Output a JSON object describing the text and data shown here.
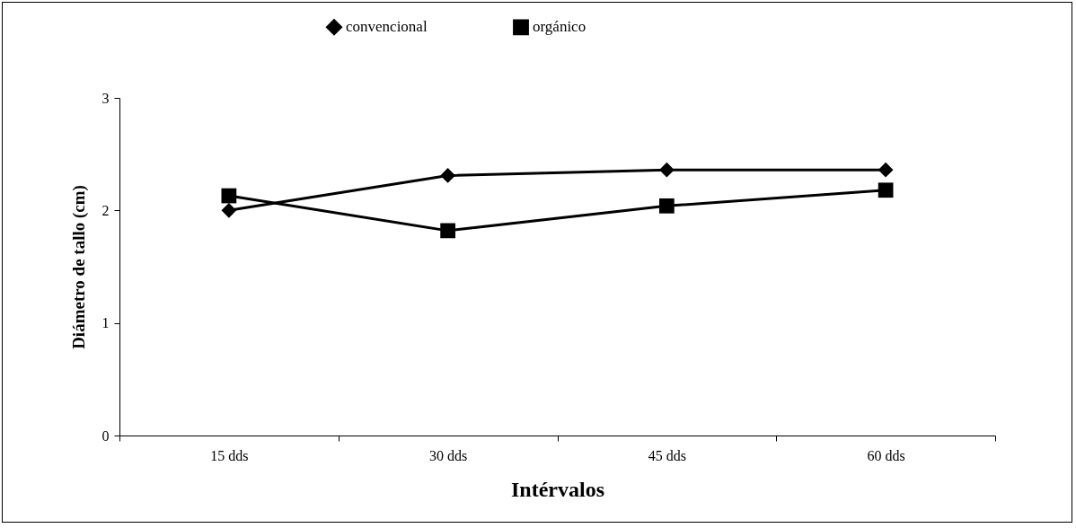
{
  "chart_data": {
    "type": "line",
    "xlabel": "Intérvalos",
    "ylabel": "Diámetro de tallo (cm)",
    "categories": [
      "15 dds",
      "30 dds",
      "45 dds",
      "60 dds"
    ],
    "ylim": [
      0,
      3
    ],
    "yticks": [
      0,
      1,
      2,
      3
    ],
    "grid": false,
    "legend": "top",
    "line_style": "solid",
    "series": [
      {
        "name": "convencional",
        "color": "#000000",
        "marker": "diamond",
        "values": [
          2.0,
          2.31,
          2.36,
          2.36
        ]
      },
      {
        "name": "orgánico",
        "color": "#000000",
        "marker": "square",
        "values": [
          2.13,
          1.82,
          2.04,
          2.18
        ]
      }
    ]
  }
}
